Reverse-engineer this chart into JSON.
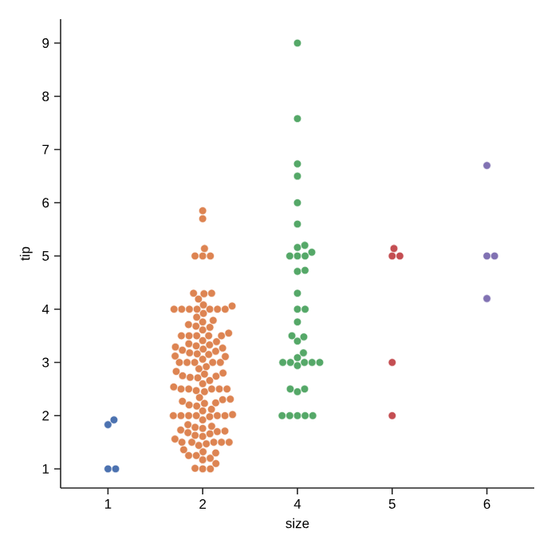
{
  "chart_data": {
    "type": "scatter",
    "xlabel": "size",
    "ylabel": "tip",
    "categories": [
      "1",
      "2",
      "4",
      "5",
      "6"
    ],
    "ylim": [
      0.64,
      9.45
    ],
    "yticks": [
      1,
      2,
      3,
      4,
      5,
      6,
      7,
      8,
      9
    ],
    "grid": false,
    "series": [
      {
        "color": "#4c72b0",
        "x": [
          "1",
          "1",
          "1",
          "1"
        ],
        "values": [
          1.0,
          1.0,
          1.83,
          1.92
        ]
      },
      {
        "color": "#dd8452",
        "x": [
          "2",
          "2",
          "2",
          "2",
          "2",
          "2",
          "2",
          "2",
          "2",
          "2",
          "2",
          "2",
          "2",
          "2",
          "2",
          "2",
          "2",
          "2",
          "2",
          "2",
          "2",
          "2",
          "2",
          "2",
          "2",
          "2",
          "2",
          "2",
          "2",
          "2",
          "2",
          "2",
          "2",
          "2",
          "2",
          "2",
          "2",
          "2",
          "2",
          "2",
          "2",
          "2",
          "2",
          "2",
          "2",
          "2",
          "2",
          "2",
          "2",
          "2",
          "2",
          "2",
          "2",
          "2",
          "2",
          "2",
          "2",
          "2",
          "2",
          "2",
          "2",
          "2",
          "2",
          "2",
          "2",
          "2",
          "2",
          "2",
          "2",
          "2",
          "2",
          "2",
          "2",
          "2",
          "2",
          "2",
          "2",
          "2",
          "2",
          "2",
          "2",
          "2",
          "2",
          "2",
          "2",
          "2",
          "2",
          "2",
          "2",
          "2",
          "2",
          "2",
          "2",
          "2",
          "2",
          "2",
          "2",
          "2",
          "2",
          "2",
          "2",
          "2",
          "2",
          "2",
          "2",
          "2",
          "2",
          "2",
          "2",
          "2",
          "2",
          "2",
          "2",
          "2",
          "2",
          "2",
          "2",
          "2",
          "2",
          "2",
          "2",
          "2"
        ],
        "values": [
          1.0,
          1.0,
          1.01,
          1.1,
          1.17,
          1.2,
          1.25,
          1.25,
          1.3,
          1.32,
          1.36,
          1.44,
          1.47,
          1.5,
          1.5,
          1.5,
          1.5,
          1.5,
          1.56,
          1.61,
          1.63,
          1.66,
          1.68,
          1.7,
          1.71,
          1.73,
          1.76,
          1.78,
          1.8,
          1.83,
          1.92,
          1.98,
          2.0,
          2.0,
          2.0,
          2.0,
          2.0,
          2.0,
          2.02,
          2.09,
          2.12,
          2.18,
          2.2,
          2.23,
          2.24,
          2.27,
          2.3,
          2.31,
          2.34,
          2.45,
          2.47,
          2.5,
          2.5,
          2.5,
          2.5,
          2.5,
          2.54,
          2.6,
          2.66,
          2.71,
          2.72,
          2.74,
          2.75,
          2.78,
          2.8,
          2.83,
          2.88,
          2.92,
          3.0,
          3.0,
          3.0,
          3.0,
          3.0,
          3.06,
          3.11,
          3.12,
          3.15,
          3.16,
          3.18,
          3.21,
          3.23,
          3.25,
          3.27,
          3.29,
          3.31,
          3.33,
          3.35,
          3.39,
          3.41,
          3.5,
          3.5,
          3.5,
          3.5,
          3.5,
          3.55,
          3.61,
          3.66,
          3.68,
          3.71,
          3.76,
          3.79,
          3.85,
          3.92,
          4.0,
          4.0,
          4.0,
          4.0,
          4.0,
          4.0,
          4.0,
          4.06,
          4.08,
          4.19,
          4.29,
          4.3,
          4.3,
          5.0,
          5.0,
          5.0,
          5.14,
          5.7,
          5.85
        ]
      },
      {
        "color": "#55a868",
        "x": [
          "4",
          "4",
          "4",
          "4",
          "4",
          "4",
          "4",
          "4",
          "4",
          "4",
          "4",
          "4",
          "4",
          "4",
          "4",
          "4",
          "4",
          "4",
          "4",
          "4",
          "4",
          "4",
          "4",
          "4",
          "4",
          "4",
          "4",
          "4",
          "4",
          "4",
          "4",
          "4",
          "4",
          "4",
          "4",
          "4",
          "4"
        ],
        "values": [
          2.0,
          2.0,
          2.0,
          2.0,
          2.0,
          2.45,
          2.5,
          2.5,
          2.94,
          3.0,
          3.0,
          3.0,
          3.0,
          3.0,
          3.09,
          3.18,
          3.4,
          3.48,
          3.5,
          3.76,
          4.0,
          4.0,
          4.3,
          4.71,
          4.73,
          5.0,
          5.0,
          5.0,
          5.07,
          5.16,
          5.2,
          5.6,
          6.0,
          6.5,
          6.73,
          7.58,
          9.0
        ]
      },
      {
        "color": "#c44e52",
        "x": [
          "5",
          "5",
          "5",
          "5",
          "5"
        ],
        "values": [
          2.0,
          3.0,
          5.0,
          5.0,
          5.14
        ]
      },
      {
        "color": "#8172b3",
        "x": [
          "6",
          "6",
          "6",
          "6"
        ],
        "values": [
          4.2,
          5.0,
          5.0,
          6.7
        ]
      }
    ]
  }
}
